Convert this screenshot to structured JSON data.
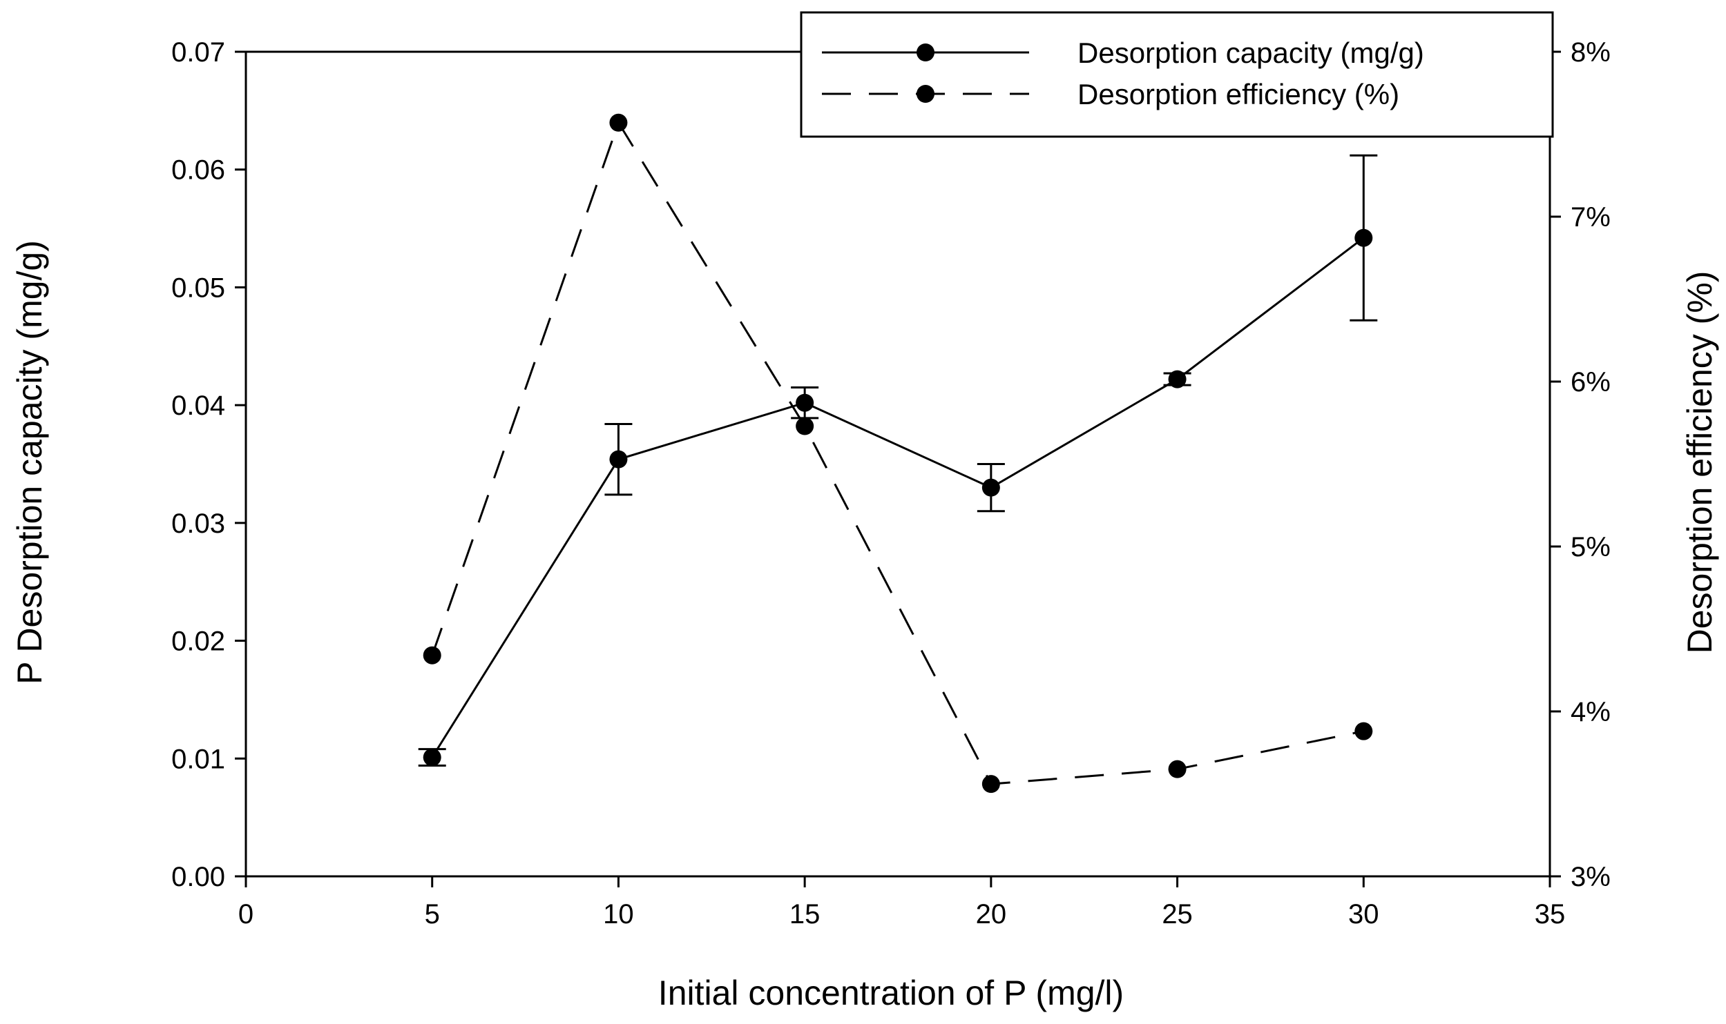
{
  "chart_data": {
    "type": "line",
    "title": "",
    "xlabel": "Initial concentration of P (mg/l)",
    "ylabel": "P Desorption capacity (mg/g)",
    "y2label": "Desorption efficiency (%)",
    "xlim": [
      0,
      35
    ],
    "ylim": [
      0,
      0.07
    ],
    "y2lim": [
      3,
      8
    ],
    "xticks": [
      "0",
      "5",
      "10",
      "15",
      "20",
      "25",
      "30",
      "35"
    ],
    "yticks": [
      "0.00",
      "0.01",
      "0.02",
      "0.03",
      "0.04",
      "0.05",
      "0.06",
      "0.07"
    ],
    "y2ticks": [
      "3%",
      "4%",
      "5%",
      "6%",
      "7%",
      "8%"
    ],
    "grid": false,
    "legend_position": "top-right",
    "series": [
      {
        "name": "Desorption capacity (mg/g)",
        "axis": "left",
        "line_style": "solid",
        "x": [
          5,
          10,
          15,
          20,
          25,
          30
        ],
        "values": [
          0.0101,
          0.0354,
          0.0402,
          0.033,
          0.0422,
          0.0542
        ],
        "errors": [
          0.0007,
          0.003,
          0.0013,
          0.002,
          0.0005,
          0.007
        ]
      },
      {
        "name": "Desorption efficiency (%)",
        "axis": "right",
        "line_style": "dashed",
        "x": [
          5,
          10,
          15,
          20,
          25,
          30
        ],
        "values": [
          4.34,
          7.57,
          5.73,
          3.56,
          3.65,
          3.88
        ]
      }
    ]
  }
}
